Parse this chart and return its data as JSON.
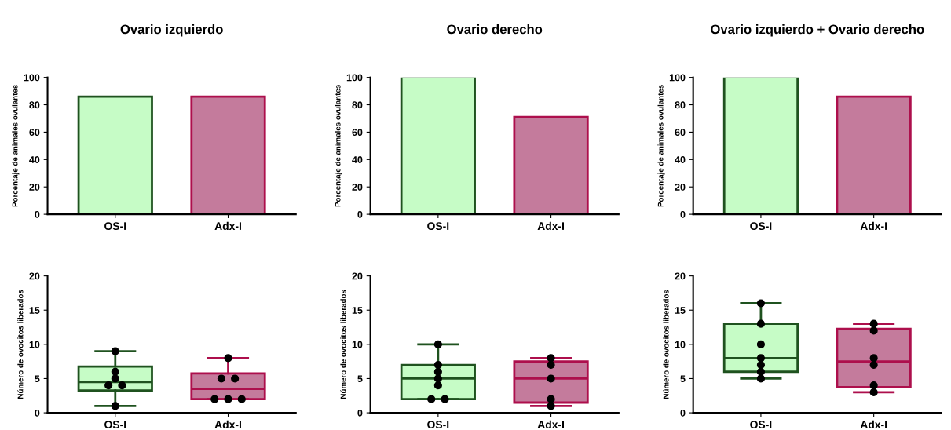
{
  "chart_data": [
    {
      "type": "bar",
      "title": "Ovario izquierdo",
      "ylabel": "Porcentaje de animales ovulantes",
      "categories": [
        "OS-I",
        "Adx-I"
      ],
      "values": [
        86,
        86
      ],
      "colors": [
        "#c6fcc6",
        "#c47b9c"
      ],
      "ylim": [
        0,
        100
      ],
      "yticks": [
        0,
        20,
        40,
        60,
        80,
        100
      ],
      "grid": false,
      "legend": false
    },
    {
      "type": "bar",
      "title": "Ovario derecho",
      "ylabel": "Porcentaje de animales ovulantes",
      "categories": [
        "OS-I",
        "Adx-I"
      ],
      "values": [
        100,
        71
      ],
      "colors": [
        "#c6fcc6",
        "#c47b9c"
      ],
      "ylim": [
        0,
        100
      ],
      "yticks": [
        0,
        20,
        40,
        60,
        80,
        100
      ],
      "grid": false,
      "legend": false
    },
    {
      "type": "bar",
      "title": "Ovario izquierdo + Ovario derecho",
      "ylabel": "Porcentaje de animales ovulantes",
      "categories": [
        "OS-I",
        "Adx-I"
      ],
      "values": [
        100,
        86
      ],
      "colors": [
        "#c6fcc6",
        "#c47b9c"
      ],
      "ylim": [
        0,
        100
      ],
      "yticks": [
        0,
        20,
        40,
        60,
        80,
        100
      ],
      "grid": false,
      "legend": false
    },
    {
      "type": "box",
      "ylabel": "Número de ovocitos liberados",
      "categories": [
        "OS-I",
        "Adx-I"
      ],
      "ylim": [
        0,
        20
      ],
      "yticks": [
        0,
        5,
        10,
        15,
        20
      ],
      "grid": false,
      "legend": false,
      "series": [
        {
          "type": "box",
          "colors": [
            "#c6fcc6",
            "#c47b9c"
          ],
          "boxes": [
            {
              "low": 1,
              "q1": 3.25,
              "median": 4.5,
              "q3": 6.75,
              "high": 9
            },
            {
              "low": 2,
              "q1": 2,
              "median": 3.5,
              "q3": 5.75,
              "high": 8
            }
          ]
        },
        {
          "type": "scatter",
          "color": "#000000",
          "marker": "circle",
          "x": [
            "OS-I",
            "OS-I",
            "OS-I",
            "OS-I",
            "OS-I",
            "OS-I",
            "Adx-I",
            "Adx-I",
            "Adx-I",
            "Adx-I",
            "Adx-I",
            "Adx-I"
          ],
          "values": [
            9,
            6,
            5,
            4,
            4,
            1,
            8,
            5,
            5,
            2,
            2,
            2
          ]
        }
      ]
    },
    {
      "type": "box",
      "ylabel": "Número de ovocitos liberados",
      "categories": [
        "OS-I",
        "Adx-I"
      ],
      "ylim": [
        0,
        20
      ],
      "yticks": [
        0,
        5,
        10,
        15,
        20
      ],
      "grid": false,
      "legend": false,
      "series": [
        {
          "type": "box",
          "colors": [
            "#c6fcc6",
            "#c47b9c"
          ],
          "boxes": [
            {
              "low": 2,
              "q1": 2,
              "median": 5,
              "q3": 7,
              "high": 10
            },
            {
              "low": 1,
              "q1": 1.5,
              "median": 5,
              "q3": 7.5,
              "high": 8
            }
          ]
        },
        {
          "type": "scatter",
          "color": "#000000",
          "marker": "circle",
          "x": [
            "OS-I",
            "OS-I",
            "OS-I",
            "OS-I",
            "OS-I",
            "OS-I",
            "OS-I",
            "Adx-I",
            "Adx-I",
            "Adx-I",
            "Adx-I",
            "Adx-I"
          ],
          "values": [
            10,
            7,
            6,
            5,
            4,
            2,
            2,
            8,
            7,
            5,
            2,
            1
          ]
        }
      ]
    },
    {
      "type": "box",
      "ylabel": "Número de ovocitos liberados",
      "categories": [
        "OS-I",
        "Adx-I"
      ],
      "ylim": [
        0,
        20
      ],
      "yticks": [
        0,
        5,
        10,
        15,
        20
      ],
      "grid": false,
      "legend": false,
      "series": [
        {
          "type": "box",
          "colors": [
            "#c6fcc6",
            "#c47b9c"
          ],
          "boxes": [
            {
              "low": 5,
              "q1": 6,
              "median": 8,
              "q3": 13,
              "high": 16
            },
            {
              "low": 3,
              "q1": 3.75,
              "median": 7.5,
              "q3": 12.25,
              "high": 13
            }
          ]
        },
        {
          "type": "scatter",
          "color": "#000000",
          "marker": "circle",
          "x": [
            "OS-I",
            "OS-I",
            "OS-I",
            "OS-I",
            "OS-I",
            "OS-I",
            "OS-I",
            "Adx-I",
            "Adx-I",
            "Adx-I",
            "Adx-I",
            "Adx-I",
            "Adx-I"
          ],
          "values": [
            16,
            13,
            10,
            8,
            7,
            6,
            5,
            13,
            12,
            8,
            7,
            4,
            3
          ]
        }
      ]
    }
  ]
}
